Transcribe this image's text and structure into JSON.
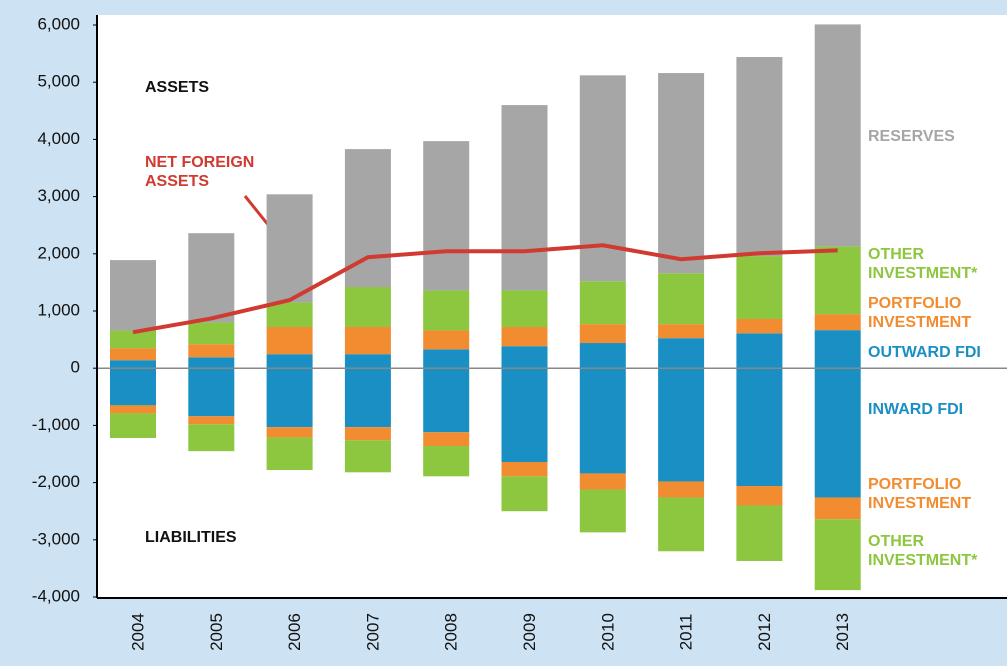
{
  "chart_data": {
    "type": "bar",
    "categories": [
      "2004",
      "2005",
      "2006",
      "2007",
      "2008",
      "2009",
      "2010",
      "2011",
      "2012",
      "2013"
    ],
    "series": [
      {
        "name": "OUTWARD FDI",
        "color": "#1a8fc4",
        "values": [
          140,
          190,
          245,
          245,
          330,
          385,
          440,
          525,
          610,
          665
        ]
      },
      {
        "name": "PORTFOLIO INVESTMENT",
        "color": "#f28c30",
        "values": [
          210,
          230,
          475,
          475,
          330,
          335,
          330,
          245,
          250,
          280
        ]
      },
      {
        "name": "OTHER INVESTMENT*",
        "color": "#8dc63f",
        "values": [
          310,
          380,
          430,
          700,
          700,
          640,
          750,
          890,
          1100,
          1185
        ]
      },
      {
        "name": "RESERVES",
        "color": "#a6a6a6",
        "values": [
          1230,
          1560,
          1890,
          2410,
          2610,
          3240,
          3600,
          3500,
          3480,
          3880
        ]
      },
      {
        "name": "INWARD FDI",
        "color": "#1a8fc4",
        "values": [
          -650,
          -840,
          -1030,
          -1030,
          -1120,
          -1640,
          -1840,
          -1980,
          -2060,
          -2260
        ]
      },
      {
        "name": "PORTFOLIO INVESTMENT",
        "color": "#f28c30",
        "values": [
          -140,
          -140,
          -180,
          -230,
          -240,
          -250,
          -280,
          -280,
          -340,
          -380
        ]
      },
      {
        "name": "OTHER INVESTMENT*",
        "color": "#8dc63f",
        "values": [
          -430,
          -470,
          -570,
          -560,
          -530,
          -610,
          -750,
          -940,
          -970,
          -1240
        ]
      },
      {
        "name": "NET FOREIGN ASSETS",
        "color": "#d03a31",
        "type": "line",
        "values": [
          630,
          870,
          1190,
          1940,
          2045,
          2045,
          2150,
          1905,
          2010,
          2060
        ]
      }
    ],
    "annotations": [
      "ASSETS",
      "LIABILITIES"
    ],
    "ylim": [
      -4000,
      6000
    ],
    "yticks": [
      {
        "value": -4000,
        "label": "-4,000"
      },
      {
        "value": -3000,
        "label": "-3,000"
      },
      {
        "value": -2000,
        "label": "-2,000"
      },
      {
        "value": -1000,
        "label": "-1,000"
      },
      0,
      {
        "value": 1000,
        "label": "1,000"
      },
      {
        "value": 2000,
        "label": "2,000"
      },
      {
        "value": 3000,
        "label": "3,000"
      },
      {
        "value": 4000,
        "label": "4,000"
      },
      {
        "value": 5000,
        "label": "5,000"
      },
      {
        "value": 6000,
        "label": "6,000"
      }
    ]
  }
}
